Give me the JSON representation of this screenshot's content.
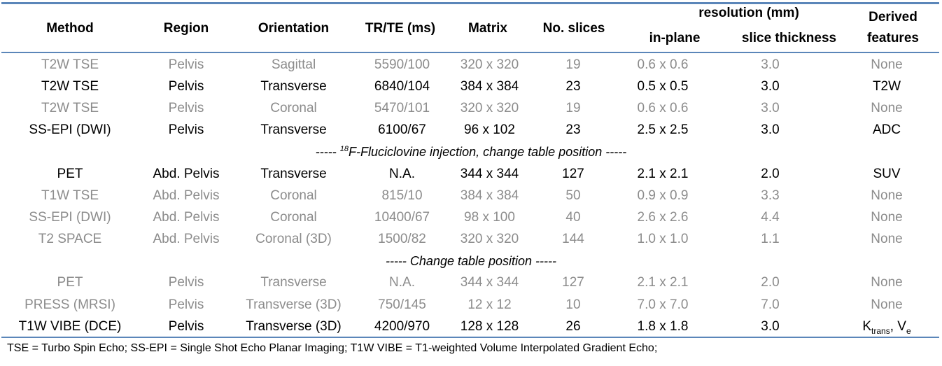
{
  "headers": {
    "method": "Method",
    "region": "Region",
    "orientation": "Orientation",
    "trte": "TR/TE (ms)",
    "matrix": "Matrix",
    "slices": "No. slices",
    "resolution": "resolution (mm)",
    "inplane": "in-plane",
    "thickness": "slice thickness",
    "derived_line1": "Derived",
    "derived_line2": "features"
  },
  "rows": [
    {
      "kind": "data",
      "highlight": false,
      "method": "T2W TSE",
      "region": "Pelvis",
      "orientation": "Sagittal",
      "trte": "5590/100",
      "matrix": "320 x 320",
      "slices": "19",
      "inplane": "0.6 x 0.6",
      "thickness": "3.0",
      "derived": "None"
    },
    {
      "kind": "data",
      "highlight": true,
      "method": "T2W TSE",
      "region": "Pelvis",
      "orientation": "Transverse",
      "trte": "6840/104",
      "matrix": "384 x 384",
      "slices": "23",
      "inplane": "0.5 x 0.5",
      "thickness": "3.0",
      "derived": "T2W"
    },
    {
      "kind": "data",
      "highlight": false,
      "method": "T2W TSE",
      "region": "Pelvis",
      "orientation": "Coronal",
      "trte": "5470/101",
      "matrix": "320 x 320",
      "slices": "19",
      "inplane": "0.6 x 0.6",
      "thickness": "3.0",
      "derived": "None"
    },
    {
      "kind": "data",
      "highlight": true,
      "method": "SS-EPI (DWI)",
      "region": "Pelvis",
      "orientation": "Transverse",
      "trte": "6100/67",
      "matrix": "96 x 102",
      "slices": "23",
      "inplane": "2.5 x 2.5",
      "thickness": "3.0",
      "derived": "ADC"
    },
    {
      "kind": "sep",
      "prefix": "----- ",
      "sup": "18",
      "text": "F-Fluciclovine injection, change table position -----"
    },
    {
      "kind": "data",
      "highlight": true,
      "method": "PET",
      "region": "Abd. Pelvis",
      "orientation": "Transverse",
      "trte": "N.A.",
      "matrix": "344 x 344",
      "slices": "127",
      "inplane": "2.1 x 2.1",
      "thickness": "2.0",
      "derived": "SUV"
    },
    {
      "kind": "data",
      "highlight": false,
      "method": "T1W TSE",
      "region": "Abd. Pelvis",
      "orientation": "Coronal",
      "trte": "815/10",
      "matrix": "384 x 384",
      "slices": "50",
      "inplane": "0.9 x 0.9",
      "thickness": "3.3",
      "derived": "None"
    },
    {
      "kind": "data",
      "highlight": false,
      "method": "SS-EPI (DWI)",
      "region": "Abd. Pelvis",
      "orientation": "Coronal",
      "trte": "10400/67",
      "matrix": "98 x 100",
      "slices": "40",
      "inplane": "2.6 x 2.6",
      "thickness": "4.4",
      "derived": "None"
    },
    {
      "kind": "data",
      "highlight": false,
      "method": "T2 SPACE",
      "region": "Abd. Pelvis",
      "orientation": "Coronal (3D)",
      "trte": "1500/82",
      "matrix": "320 x 320",
      "slices": "144",
      "inplane": "1.0 x 1.0",
      "thickness": "1.1",
      "derived": "None"
    },
    {
      "kind": "sep",
      "prefix": "",
      "sup": "",
      "text": "----- Change table position -----"
    },
    {
      "kind": "data",
      "highlight": false,
      "method": "PET",
      "region": "Pelvis",
      "orientation": "Transverse",
      "trte": "N.A.",
      "matrix": "344 x 344",
      "slices": "127",
      "inplane": "2.1 x 2.1",
      "thickness": "2.0",
      "derived": "None"
    },
    {
      "kind": "data",
      "highlight": false,
      "method": "PRESS (MRSI)",
      "region": "Pelvis",
      "orientation": "Transverse (3D)",
      "trte": "750/145",
      "matrix": "12 x 12",
      "slices": "10",
      "inplane": "7.0 x 7.0",
      "thickness": "7.0",
      "derived": "None"
    },
    {
      "kind": "data",
      "highlight": true,
      "method": "T1W VIBE (DCE)",
      "region": "Pelvis",
      "orientation": "Transverse (3D)",
      "trte": "4200/970",
      "matrix": "128 x 128",
      "slices": "26",
      "inplane": "1.8 x 1.8",
      "thickness": "3.0",
      "derived_parts": {
        "k": "K",
        "k_sub": "trans",
        "sep": ", ",
        "v": "V",
        "v_sub": "e"
      }
    }
  ],
  "footnote": "TSE = Turbo Spin Echo; SS-EPI = Single Shot Echo Planar Imaging; T1W VIBE = T1-weighted Volume Interpolated Gradient Echo;",
  "colors": {
    "rule": "#5b86b9",
    "dim_text": "#8c8c8c",
    "highlight_text": "#000000"
  }
}
